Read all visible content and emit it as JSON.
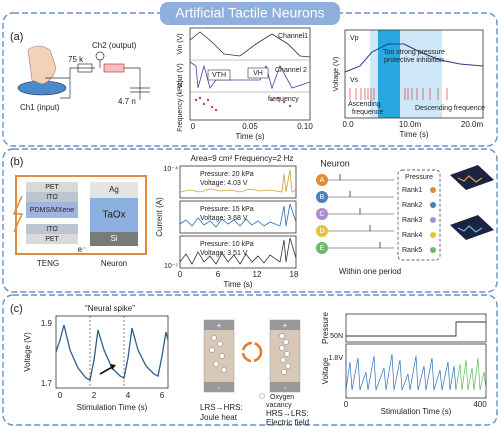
{
  "header": {
    "title": "Artificial Tactile Neurons"
  },
  "panel_a": {
    "label": "(a)",
    "circuit": {
      "output": "Ch2 (output)",
      "resistor": "75 k",
      "input": "Ch1 (input)",
      "capacitor": "4.7 n"
    },
    "plot1": {
      "y_labels": [
        "Vin (V)",
        "Vout (V)",
        "Frequency (kHz)"
      ],
      "annotations": [
        "Channel1",
        "Channel 2",
        "VTH",
        "VH",
        "frequency"
      ],
      "x_ticks": [
        "0",
        "0.05",
        "0.10"
      ],
      "x_label": "Time (s)"
    },
    "plot2": {
      "series": [
        "Vp",
        "Vs"
      ],
      "y_label": "Voltage (V)",
      "annotations": [
        "Too strong pressure",
        "protective inhibition",
        "Ascending",
        "frequence",
        "Descending frequence"
      ],
      "x_ticks": [
        "0.0",
        "10.0m",
        "20.0m"
      ],
      "x_label": "Time (s)"
    }
  },
  "panel_b": {
    "label": "(b)",
    "teng_layers": [
      "PET",
      "ITO",
      "PDMS/MXene",
      "ITO",
      "PET"
    ],
    "teng_label": "TENG",
    "electron": "e⁻",
    "neuron_layers": [
      "Ag",
      "TaOx",
      "Si"
    ],
    "neuron_label": "Neuron",
    "current": {
      "title": "Area=9 cm² Frequency=2 Hz",
      "traces": [
        {
          "pressure": "Pressure: 20 kPa",
          "voltage": "Voltage: 4.03 V"
        },
        {
          "pressure": "Pressure: 15 kPa",
          "voltage": "Voltage: 3.68 V"
        },
        {
          "pressure": "Pressure: 10 kPa",
          "voltage": "Voltage: 3.51 V"
        }
      ],
      "y_label": "Current (A)",
      "y_ticks": [
        "10⁻⁴",
        "10⁻⁷"
      ],
      "x_ticks": [
        "0",
        "6",
        "12",
        "18"
      ],
      "x_label": "Time (s)"
    },
    "coding": {
      "title": "Neuron",
      "neurons": [
        "A",
        "B",
        "C",
        "D",
        "E"
      ],
      "legend_title": "Pressure",
      "ranks": [
        "Rank1",
        "Rank2",
        "Rank3",
        "Rank4",
        "Rank5"
      ],
      "caption": "Within one period"
    }
  },
  "panel_c": {
    "label": "(c)",
    "spike": {
      "title": "\"Neural spike\"",
      "y_label": "Voltage (V)",
      "y_ticks": [
        "1.9",
        "1.7"
      ],
      "x_ticks": [
        "0",
        "2",
        "4",
        "6"
      ],
      "x_label": "Stimulation Time (s)"
    },
    "mechanism": {
      "left": [
        "LRS→HRS:",
        "Joule heat"
      ],
      "right": [
        "HRS→LRS:",
        "Electric field"
      ],
      "vacancy": [
        "Oxygen",
        "vacancy"
      ]
    },
    "response": {
      "y_labels": [
        "Pressure",
        "Voltage"
      ],
      "levels": [
        "50N",
        "1.8V"
      ],
      "x_ticks": [
        "0",
        "400"
      ],
      "x_label": "Stimulation Time (s)"
    }
  }
}
